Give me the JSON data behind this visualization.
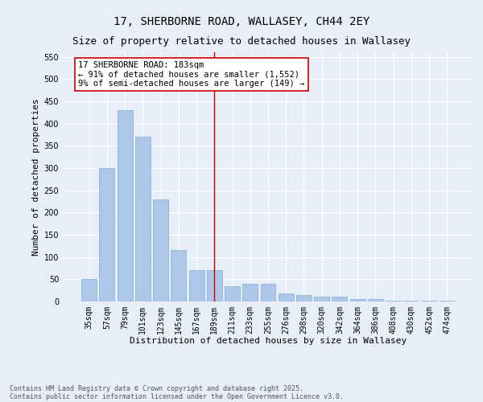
{
  "title1": "17, SHERBORNE ROAD, WALLASEY, CH44 2EY",
  "title2": "Size of property relative to detached houses in Wallasey",
  "xlabel": "Distribution of detached houses by size in Wallasey",
  "ylabel": "Number of detached properties",
  "categories": [
    "35sqm",
    "57sqm",
    "79sqm",
    "101sqm",
    "123sqm",
    "145sqm",
    "167sqm",
    "189sqm",
    "211sqm",
    "233sqm",
    "255sqm",
    "276sqm",
    "298sqm",
    "320sqm",
    "342sqm",
    "364sqm",
    "386sqm",
    "408sqm",
    "430sqm",
    "452sqm",
    "474sqm"
  ],
  "values": [
    50,
    300,
    430,
    370,
    230,
    115,
    70,
    70,
    35,
    40,
    40,
    18,
    15,
    10,
    10,
    5,
    5,
    2,
    1,
    1,
    1
  ],
  "bar_color": "#aec6e8",
  "bar_edge_color": "#7aafd4",
  "marker_index": 7,
  "marker_label": "17 SHERBORNE ROAD: 183sqm\n← 91% of detached houses are smaller (1,552)\n9% of semi-detached houses are larger (149) →",
  "marker_line_color": "#cc0000",
  "annotation_box_edge": "#cc0000",
  "ylim": [
    0,
    560
  ],
  "yticks": [
    0,
    50,
    100,
    150,
    200,
    250,
    300,
    350,
    400,
    450,
    500,
    550
  ],
  "bg_color": "#e8eef8",
  "plot_bg_color": "#e8eef8",
  "grid_color": "#ffffff",
  "footer1": "Contains HM Land Registry data © Crown copyright and database right 2025.",
  "footer2": "Contains public sector information licensed under the Open Government Licence v3.0.",
  "title1_fontsize": 10,
  "title2_fontsize": 9,
  "xlabel_fontsize": 8,
  "ylabel_fontsize": 8,
  "tick_fontsize": 7,
  "annotation_fontsize": 7.5,
  "footer_fontsize": 6
}
